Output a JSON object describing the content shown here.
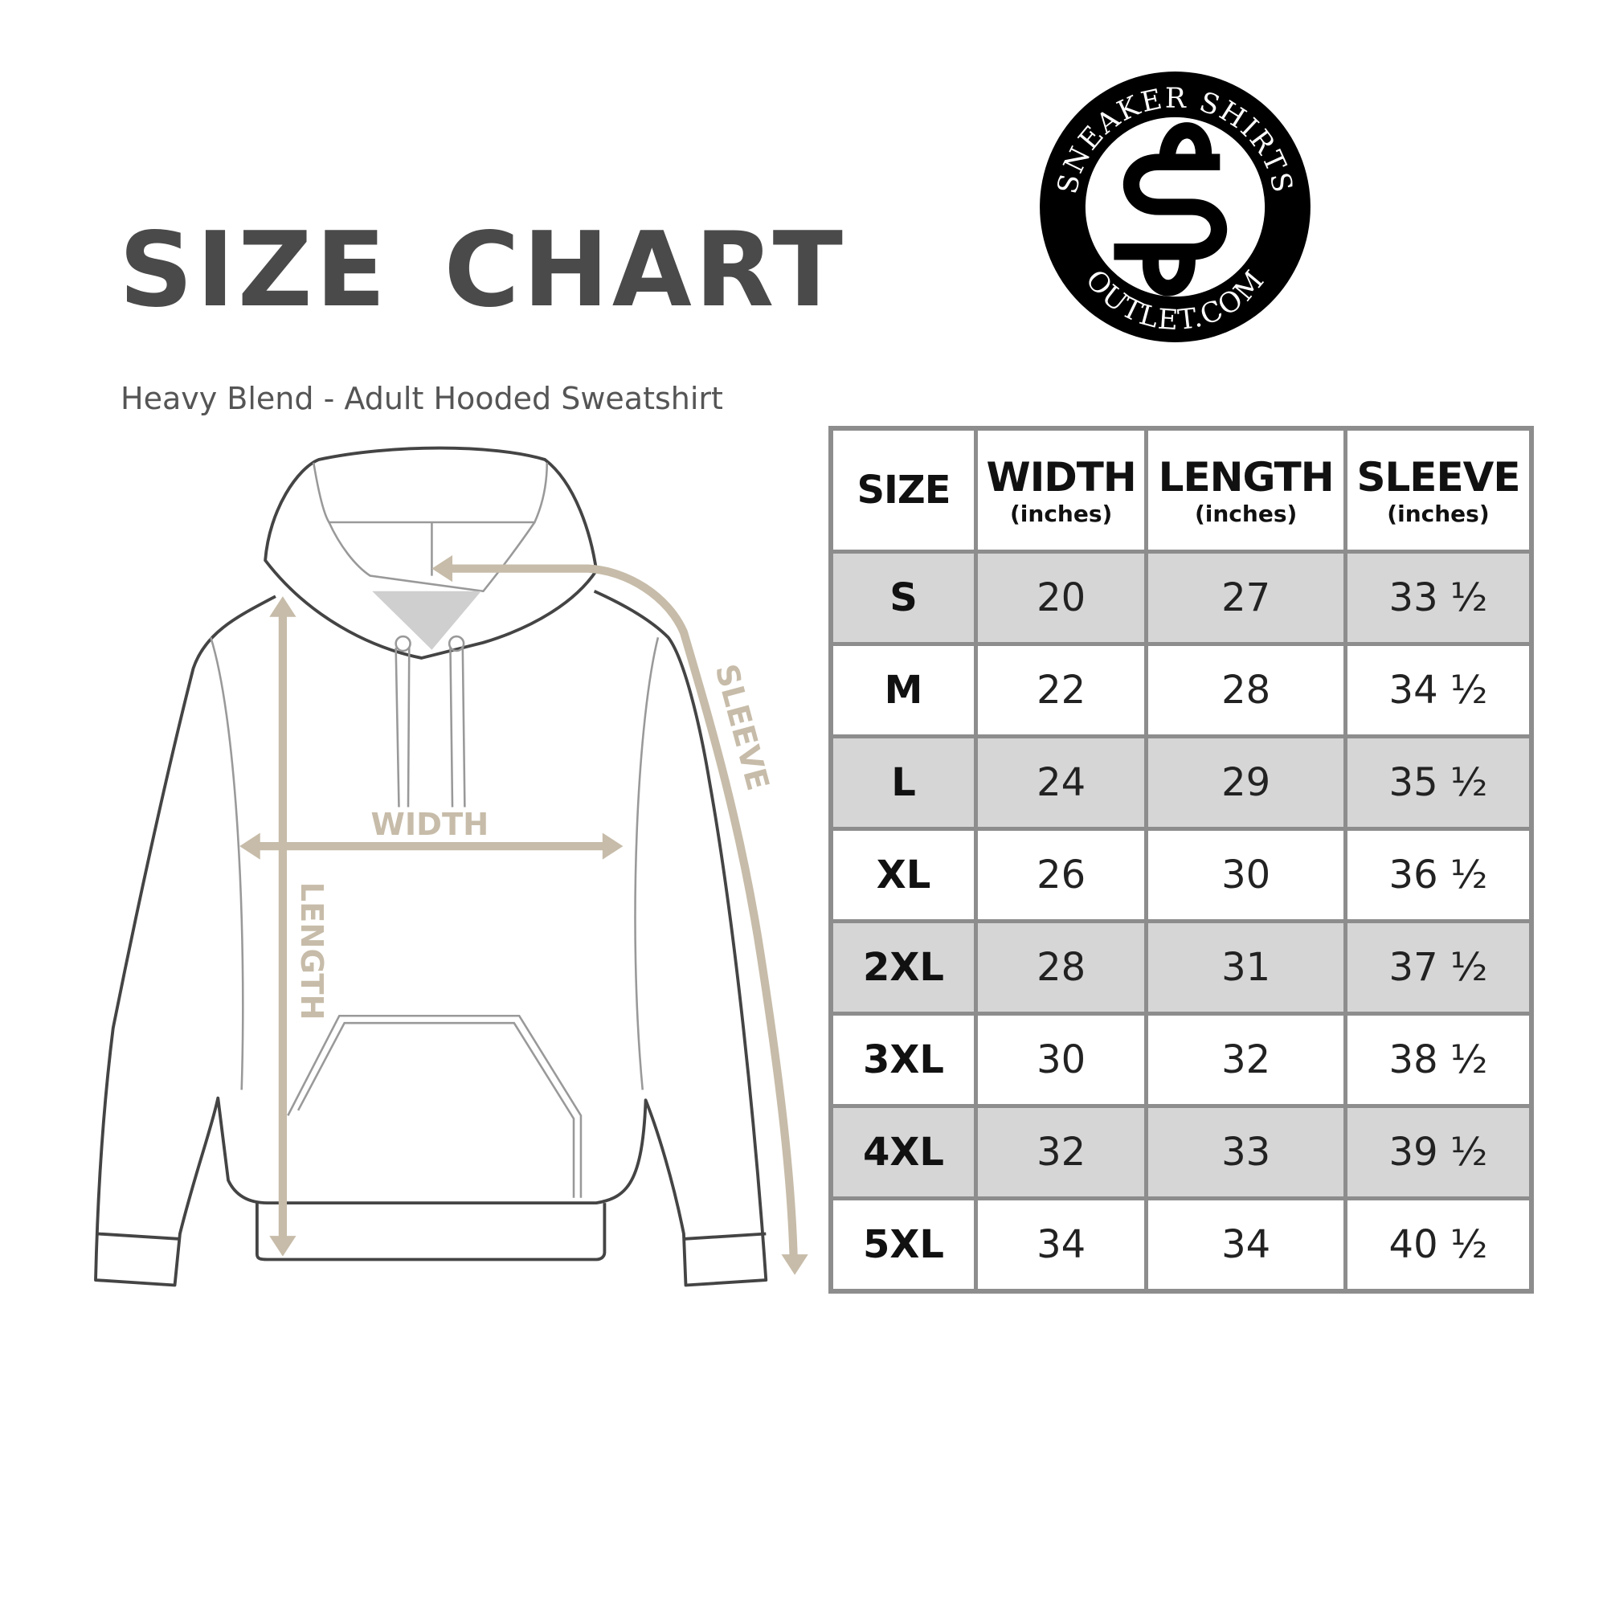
{
  "title": "SIZE CHART",
  "subtitle": "Heavy Blend - Adult Hooded Sweatshirt",
  "logo": {
    "top_text": "SNEAKER SHIRTS",
    "bottom_text": "OUTLET.COM",
    "monogram": "SS"
  },
  "diagram_labels": {
    "width": "WIDTH",
    "length": "LENGTH",
    "sleeve": "SLEEVE"
  },
  "colors": {
    "title": "#4a4a4a",
    "arrow": "#c7bca9",
    "row_alt": "#d6d6d6",
    "border": "#8d8d8d"
  },
  "table": {
    "headers": [
      {
        "label": "SIZE",
        "unit": ""
      },
      {
        "label": "WIDTH",
        "unit": "(inches)"
      },
      {
        "label": "LENGTH",
        "unit": "(inches)"
      },
      {
        "label": "SLEEVE",
        "unit": "(inches)"
      }
    ],
    "rows": [
      [
        "S",
        "20",
        "27",
        "33 ½"
      ],
      [
        "M",
        "22",
        "28",
        "34 ½"
      ],
      [
        "L",
        "24",
        "29",
        "35 ½"
      ],
      [
        "XL",
        "26",
        "30",
        "36 ½"
      ],
      [
        "2XL",
        "28",
        "31",
        "37 ½"
      ],
      [
        "3XL",
        "30",
        "32",
        "38 ½"
      ],
      [
        "4XL",
        "32",
        "33",
        "39 ½"
      ],
      [
        "5XL",
        "34",
        "34",
        "40 ½"
      ]
    ]
  }
}
